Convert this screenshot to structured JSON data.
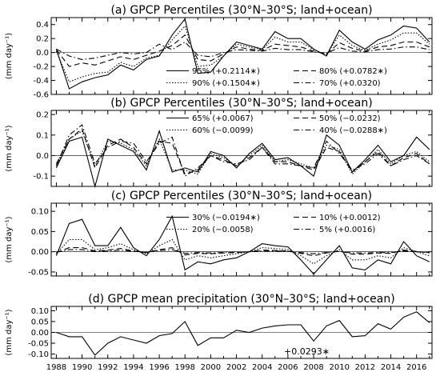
{
  "chart_data": [
    {
      "type": "line",
      "title": "(a) GPCP Percentiles (30°N–30°S; land+ocean)",
      "ylabel": "(mm day⁻¹)",
      "ylim": [
        -0.6,
        0.5
      ],
      "yticks": [
        -0.6,
        -0.4,
        -0.2,
        0.0,
        0.2,
        0.4
      ],
      "tick_labels": [
        "-0.6",
        "-0.4",
        "-0.2",
        "0.0",
        "0.2",
        "0.4"
      ],
      "x": [
        1988,
        1989,
        1990,
        1991,
        1992,
        1993,
        1994,
        1995,
        1996,
        1997,
        1998,
        1999,
        2000,
        2001,
        2002,
        2003,
        2004,
        2005,
        2006,
        2007,
        2008,
        2009,
        2010,
        2011,
        2012,
        2013,
        2014,
        2015,
        2016,
        2017
      ],
      "series": [
        {
          "name": "95% (+0.2114∗)",
          "values": [
            0.05,
            -0.52,
            -0.42,
            -0.36,
            -0.32,
            -0.18,
            -0.25,
            -0.1,
            -0.05,
            0.25,
            0.48,
            -0.3,
            -0.28,
            -0.05,
            0.15,
            0.1,
            0.05,
            0.3,
            0.2,
            0.2,
            0.05,
            -0.05,
            0.32,
            0.15,
            0.05,
            0.18,
            0.25,
            0.38,
            0.35,
            0.15
          ]
        },
        {
          "name": "90% (+0.1504∗)",
          "values": [
            0.02,
            -0.42,
            -0.35,
            -0.3,
            -0.28,
            -0.14,
            -0.2,
            -0.08,
            -0.04,
            0.18,
            0.38,
            -0.2,
            -0.18,
            -0.05,
            0.12,
            0.08,
            0.04,
            0.22,
            0.15,
            0.15,
            0.04,
            -0.03,
            0.25,
            0.1,
            0.03,
            0.12,
            0.18,
            0.28,
            0.28,
            0.12
          ]
        },
        {
          "name": "80% (+0.0782∗)",
          "values": [
            0.04,
            -0.2,
            -0.15,
            -0.18,
            -0.12,
            -0.06,
            -0.1,
            -0.04,
            0.02,
            0.1,
            0.25,
            -0.1,
            -0.12,
            -0.02,
            0.08,
            0.05,
            0.03,
            0.12,
            0.1,
            0.08,
            0.02,
            -0.02,
            0.14,
            0.06,
            0.02,
            0.08,
            0.1,
            0.15,
            0.15,
            0.08
          ]
        },
        {
          "name": "70% (+0.0320)",
          "values": [
            0.05,
            -0.05,
            -0.1,
            -0.08,
            -0.04,
            0.0,
            -0.02,
            0.0,
            0.12,
            0.04,
            0.15,
            -0.04,
            -0.06,
            0.0,
            0.04,
            0.03,
            0.02,
            0.06,
            0.04,
            0.04,
            0.01,
            -0.01,
            0.07,
            0.02,
            0.01,
            0.04,
            0.05,
            0.08,
            0.08,
            0.04
          ]
        }
      ],
      "legend_placement": "bottom-right"
    },
    {
      "type": "line",
      "title": "(b) GPCP Percentiles (30°N–30°S; land+ocean)",
      "ylabel": "(mm day⁻¹)",
      "ylim": [
        -0.15,
        0.22
      ],
      "yticks": [
        -0.1,
        0.0,
        0.1,
        0.2
      ],
      "tick_labels": [
        "-0.1",
        "0.0",
        "0.1",
        "0.2"
      ],
      "x": [
        1988,
        1989,
        1990,
        1991,
        1992,
        1993,
        1994,
        1995,
        1996,
        1997,
        1998,
        1999,
        2000,
        2001,
        2002,
        2003,
        2004,
        2005,
        2006,
        2007,
        2008,
        2009,
        2010,
        2011,
        2012,
        2013,
        2014,
        2015,
        2016,
        2017
      ],
      "series": [
        {
          "name": "65% (+0.0067)",
          "values": [
            -0.06,
            0.07,
            0.09,
            -0.15,
            0.08,
            0.05,
            0.02,
            -0.07,
            0.12,
            -0.08,
            -0.06,
            -0.08,
            0.02,
            0.0,
            -0.06,
            0.01,
            0.06,
            -0.02,
            -0.01,
            -0.05,
            -0.1,
            0.1,
            0.05,
            -0.08,
            -0.02,
            0.05,
            -0.03,
            0.0,
            0.09,
            0.03
          ]
        },
        {
          "name": "60% (−0.0099)",
          "values": [
            -0.05,
            0.08,
            0.12,
            -0.05,
            0.07,
            0.06,
            0.03,
            -0.05,
            0.08,
            -0.07,
            -0.07,
            -0.09,
            0.01,
            -0.01,
            -0.05,
            0.0,
            0.05,
            -0.03,
            -0.02,
            -0.04,
            -0.06,
            0.05,
            0.03,
            -0.09,
            -0.03,
            0.03,
            -0.04,
            0.0,
            0.02,
            -0.03
          ]
        },
        {
          "name": "50% (−0.0232)",
          "values": [
            -0.04,
            0.08,
            0.13,
            -0.06,
            0.05,
            0.08,
            0.04,
            -0.04,
            0.07,
            0.06,
            -0.09,
            -0.07,
            0.0,
            -0.02,
            -0.05,
            -0.01,
            0.04,
            -0.03,
            -0.03,
            -0.05,
            -0.07,
            0.04,
            0.02,
            -0.08,
            -0.03,
            0.02,
            -0.05,
            -0.01,
            0.01,
            -0.04
          ]
        },
        {
          "name": "40% (−0.0288∗)",
          "values": [
            -0.05,
            0.1,
            0.15,
            -0.04,
            0.04,
            0.07,
            0.06,
            -0.03,
            0.06,
            0.09,
            -0.1,
            -0.06,
            0.0,
            -0.03,
            -0.04,
            -0.02,
            0.04,
            -0.04,
            -0.04,
            -0.05,
            -0.06,
            0.07,
            0.01,
            -0.07,
            -0.04,
            0.01,
            -0.05,
            -0.02,
            0.0,
            -0.04
          ]
        }
      ],
      "legend_placement": "top-right"
    },
    {
      "type": "line",
      "title": "(c) GPCP Percentiles (30°N–30°S; land+ocean)",
      "ylabel": "(mm day⁻¹)",
      "ylim": [
        -0.06,
        0.12
      ],
      "yticks": [
        -0.05,
        0.0,
        0.05,
        0.1
      ],
      "tick_labels": [
        "-0.05",
        "0.00",
        "0.05",
        "0.10"
      ],
      "x": [
        1988,
        1989,
        1990,
        1991,
        1992,
        1993,
        1994,
        1995,
        1996,
        1997,
        1998,
        1999,
        2000,
        2001,
        2002,
        2003,
        2004,
        2005,
        2006,
        2007,
        2008,
        2009,
        2010,
        2011,
        2012,
        2013,
        2014,
        2015,
        2016,
        2017
      ],
      "series": [
        {
          "name": "30% (−0.0194∗)",
          "values": [
            -0.01,
            0.07,
            0.08,
            0.015,
            0.015,
            0.06,
            0.01,
            -0.01,
            0.03,
            0.088,
            -0.045,
            -0.025,
            -0.03,
            -0.02,
            -0.015,
            0.0,
            0.02,
            0.015,
            0.012,
            -0.02,
            -0.055,
            -0.02,
            0.015,
            -0.04,
            -0.045,
            -0.02,
            -0.03,
            0.025,
            -0.01,
            -0.025
          ]
        },
        {
          "name": "20% (−0.0058)",
          "values": [
            -0.005,
            0.03,
            0.03,
            0.005,
            0.01,
            0.02,
            0.005,
            -0.005,
            0.015,
            0.03,
            -0.02,
            -0.01,
            -0.015,
            -0.01,
            -0.005,
            0.0,
            0.01,
            0.008,
            0.005,
            -0.01,
            -0.03,
            -0.01,
            0.005,
            -0.02,
            -0.02,
            -0.01,
            -0.015,
            0.01,
            0.0,
            -0.01
          ]
        },
        {
          "name": "10% (+0.0012)",
          "values": [
            -0.002,
            0.01,
            0.01,
            0.002,
            0.004,
            0.008,
            0.002,
            -0.002,
            0.005,
            0.01,
            -0.008,
            -0.004,
            -0.005,
            -0.003,
            -0.002,
            0.0,
            0.004,
            0.003,
            0.002,
            -0.004,
            -0.01,
            -0.003,
            0.002,
            -0.006,
            -0.006,
            -0.003,
            -0.004,
            0.004,
            0.001,
            -0.003
          ]
        },
        {
          "name": "5% (+0.0016)",
          "values": [
            -0.001,
            0.005,
            0.005,
            0.001,
            0.002,
            0.004,
            0.001,
            -0.001,
            0.003,
            0.005,
            -0.004,
            -0.002,
            -0.003,
            -0.002,
            -0.001,
            0.0,
            0.002,
            0.002,
            0.001,
            -0.002,
            -0.005,
            -0.002,
            0.001,
            -0.003,
            -0.003,
            -0.002,
            -0.002,
            0.002,
            0.0,
            -0.002
          ]
        }
      ],
      "legend_placement": "top-right"
    },
    {
      "type": "line",
      "title": "(d) GPCP mean precipitation (30°N–30°S; land+ocean)",
      "ylabel": "(mm day⁻¹)",
      "ylim": [
        -0.12,
        0.12
      ],
      "yticks": [
        -0.1,
        -0.05,
        0.0,
        0.05,
        0.1
      ],
      "tick_labels": [
        "-0.10",
        "-0.05",
        "0.00",
        "0.05",
        "0.10"
      ],
      "x": [
        1988,
        1989,
        1990,
        1991,
        1992,
        1993,
        1994,
        1995,
        1996,
        1997,
        1998,
        1999,
        2000,
        2001,
        2002,
        2003,
        2004,
        2005,
        2006,
        2007,
        2008,
        2009,
        2010,
        2011,
        2012,
        2013,
        2014,
        2015,
        2016,
        2017
      ],
      "series": [
        {
          "name": "",
          "values": [
            0.0,
            -0.02,
            -0.02,
            -0.105,
            -0.05,
            -0.02,
            -0.035,
            -0.05,
            -0.015,
            -0.005,
            0.05,
            -0.06,
            -0.025,
            -0.025,
            0.01,
            0.0,
            0.02,
            0.03,
            0.035,
            0.035,
            -0.04,
            0.03,
            0.055,
            -0.02,
            -0.015,
            0.04,
            0.015,
            0.07,
            0.095,
            0.045
          ]
        }
      ],
      "annotation": "+0.0293∗"
    }
  ],
  "x_tick_labels": [
    "1988",
    "1990",
    "1992",
    "1994",
    "1996",
    "1998",
    "2000",
    "2002",
    "2004",
    "2006",
    "2008",
    "2010",
    "2012",
    "2014",
    "2016"
  ]
}
